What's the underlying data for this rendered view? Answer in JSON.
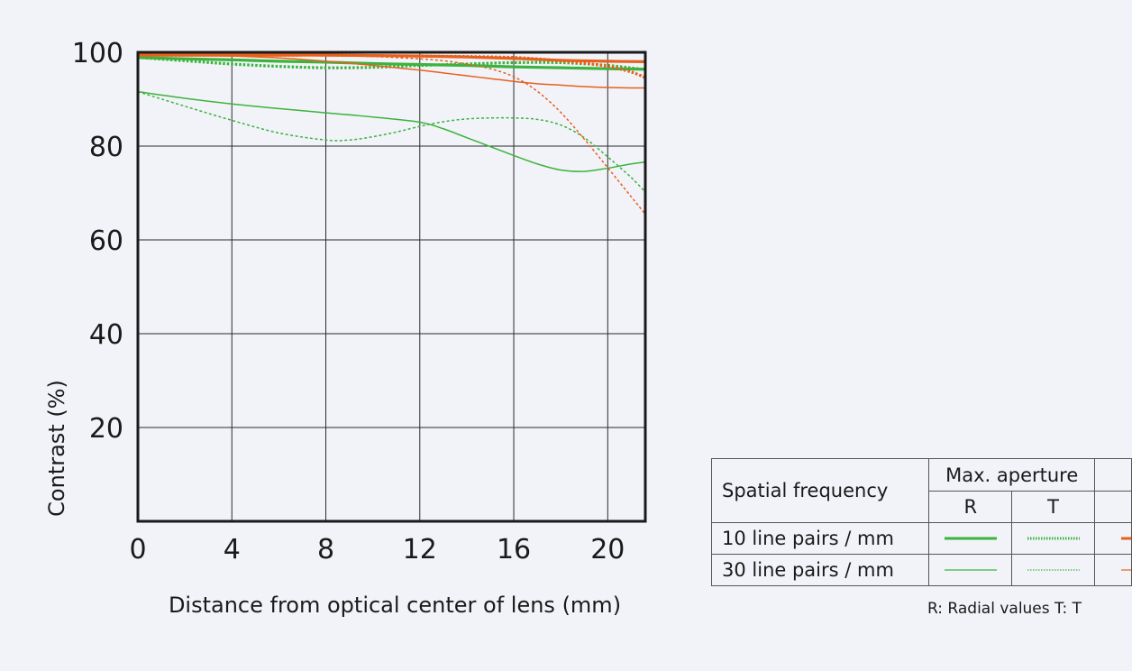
{
  "chart_data": {
    "type": "line",
    "ylabel": "Contrast (%)",
    "xlabel": "Distance from optical center of lens (mm)",
    "xlim": [
      0,
      21.6
    ],
    "ylim": [
      0,
      100
    ],
    "x_ticks": [
      "0",
      "4",
      "8",
      "12",
      "16",
      "20"
    ],
    "y_ticks": [
      "20",
      "40",
      "60",
      "80",
      "100"
    ],
    "grid": true,
    "legend_position": "bottom-right",
    "series": [
      {
        "color": "#3cb33c",
        "style": "solid",
        "width": "thick",
        "x": [
          0,
          2,
          4,
          6,
          8,
          10,
          12,
          14,
          16,
          18,
          20,
          21.6
        ],
        "y": [
          98.9,
          98.6,
          98.4,
          98.1,
          97.9,
          97.6,
          97.4,
          97.2,
          96.9,
          96.7,
          96.5,
          96.4
        ]
      },
      {
        "color": "#3cb33c",
        "style": "dotted",
        "width": "thick",
        "x": [
          0,
          2,
          4,
          6,
          8,
          10,
          12,
          14,
          16,
          18,
          20,
          21.6
        ],
        "y": [
          98.9,
          98.2,
          97.5,
          97.0,
          96.7,
          96.8,
          97.2,
          97.5,
          97.8,
          97.8,
          97.2,
          96.3
        ]
      },
      {
        "color": "#3cb33c",
        "style": "solid",
        "width": "thin",
        "x": [
          0,
          2,
          4,
          6,
          8,
          10,
          12,
          13,
          14,
          15,
          16,
          17,
          18,
          19,
          20,
          21,
          21.6
        ],
        "y": [
          91.6,
          90.2,
          89.0,
          88.0,
          87.1,
          86.2,
          85.1,
          83.7,
          81.8,
          79.9,
          78.0,
          76.2,
          74.9,
          74.6,
          75.3,
          76.2,
          76.6
        ]
      },
      {
        "color": "#3cb33c",
        "style": "dotted",
        "width": "thin",
        "x": [
          0,
          2,
          4,
          6,
          8,
          9,
          10,
          11,
          12,
          13,
          14,
          15,
          16,
          17,
          18,
          19,
          20,
          21,
          21.6
        ],
        "y": [
          91.6,
          88.5,
          85.5,
          82.8,
          81.3,
          81.3,
          82.0,
          83.0,
          84.2,
          85.2,
          85.8,
          86.0,
          86.0,
          85.7,
          84.5,
          81.8,
          77.7,
          73.3,
          70.2
        ]
      },
      {
        "color": "#e8601c",
        "style": "solid",
        "width": "thick",
        "x": [
          0,
          2,
          4,
          6,
          8,
          10,
          12,
          14,
          16,
          18,
          20,
          21.6
        ],
        "y": [
          99.4,
          99.4,
          99.4,
          99.4,
          99.4,
          99.3,
          99.2,
          99.0,
          98.7,
          98.3,
          98.1,
          98.0
        ]
      },
      {
        "color": "#e8601c",
        "style": "dotted",
        "width": "thick",
        "x": [
          0,
          2,
          4,
          6,
          8,
          10,
          12,
          14,
          16,
          17,
          18,
          19,
          20,
          21,
          21.6
        ],
        "y": [
          99.4,
          99.4,
          99.4,
          99.4,
          99.4,
          99.3,
          99.2,
          99.1,
          98.9,
          98.6,
          98.2,
          97.7,
          97.0,
          95.8,
          94.6
        ]
      },
      {
        "color": "#e8601c",
        "style": "solid",
        "width": "thin",
        "x": [
          0,
          2,
          4,
          6,
          8,
          10,
          12,
          13,
          14,
          15,
          16,
          17,
          18,
          19,
          20,
          21,
          21.6
        ],
        "y": [
          99.5,
          99.4,
          99.2,
          98.8,
          98.1,
          97.2,
          96.2,
          95.6,
          95.0,
          94.4,
          93.8,
          93.3,
          93.0,
          92.7,
          92.5,
          92.4,
          92.4
        ]
      },
      {
        "color": "#e8601c",
        "style": "dotted",
        "width": "thin",
        "x": [
          0,
          2,
          4,
          6,
          8,
          10,
          12,
          13,
          14,
          15,
          16,
          17,
          18,
          19,
          20,
          21,
          21.6
        ],
        "y": [
          99.5,
          99.5,
          99.5,
          99.4,
          99.3,
          99.1,
          98.6,
          98.2,
          97.5,
          96.5,
          94.8,
          91.7,
          87.2,
          81.5,
          75.4,
          69.2,
          65.5
        ]
      }
    ]
  },
  "legend": {
    "header_label": "Spatial frequency",
    "col_group": "Max. aperture",
    "col_r": "R",
    "col_t": "T",
    "rows": [
      {
        "label": "10 line pairs / mm"
      },
      {
        "label": "30 line pairs / mm"
      }
    ],
    "note": "R: Radial values  T: T"
  }
}
